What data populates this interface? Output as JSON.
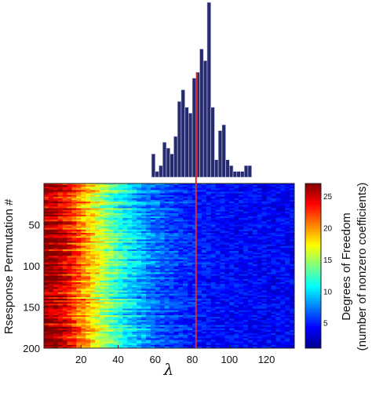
{
  "chart_data": [
    {
      "type": "bar",
      "role": "histogram",
      "bar_color": "#262a6e",
      "highlight_color": "#c8252b",
      "x_start": 58,
      "bin_width": 2,
      "counts": [
        4,
        1,
        2,
        6,
        5,
        4,
        7,
        13,
        15,
        12,
        11,
        17,
        18,
        22,
        20,
        30,
        12,
        3,
        8,
        9,
        3,
        2,
        1,
        1,
        1,
        2,
        2
      ]
    },
    {
      "type": "heatmap",
      "xlabel": "λ",
      "ylabel": "Rsesponse Permutation #",
      "xlim": [
        0,
        135
      ],
      "ylim": [
        0,
        200
      ],
      "x_ticks": [
        "20",
        "40",
        "60",
        "80",
        "100",
        "120"
      ],
      "y_ticks": [
        "50",
        "100",
        "150",
        "200"
      ],
      "marker_line_x": 82,
      "marker_color": "#e8242b",
      "colorbar": {
        "label": "Degrees of Freedom",
        "sublabel": "(number of nonzero coefficients)",
        "range": [
          1,
          27
        ],
        "ticks": [
          "5",
          "10",
          "15",
          "20",
          "25"
        ]
      }
    }
  ]
}
